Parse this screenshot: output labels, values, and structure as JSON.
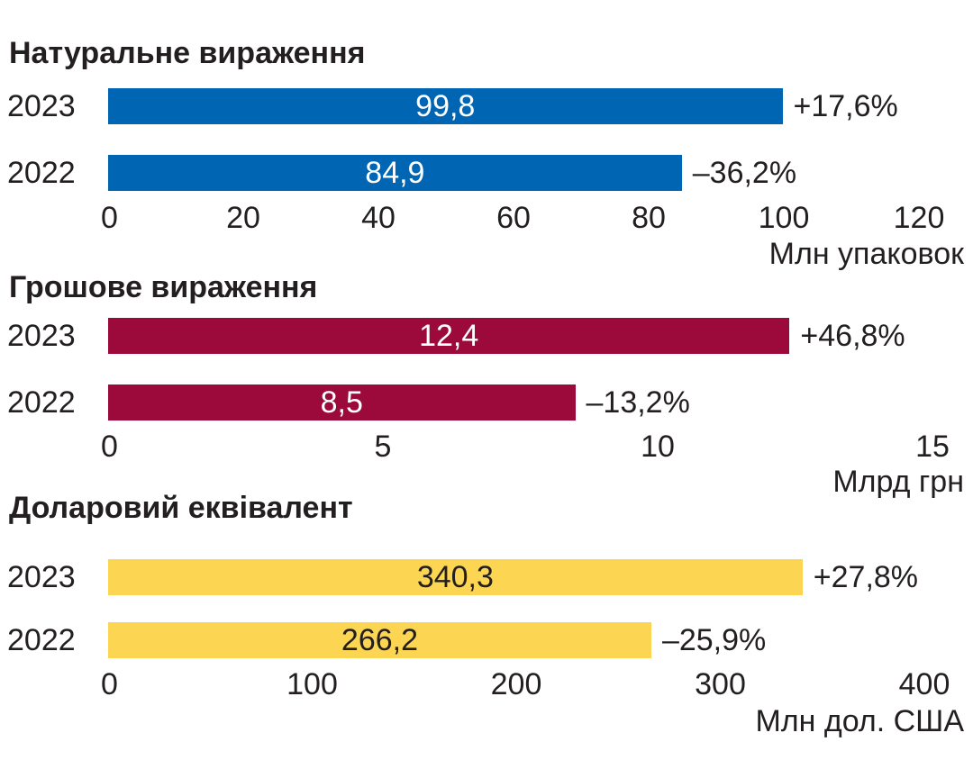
{
  "chart_data": [
    {
      "type": "bar",
      "title": "Натуральне вираження",
      "categories": [
        "2023",
        "2022"
      ],
      "values": [
        99.8,
        84.9
      ],
      "value_labels": [
        "99,8",
        "84,9"
      ],
      "change_labels": [
        "+17,6%",
        "–36,2%"
      ],
      "xlim": [
        0,
        120
      ],
      "ticks": [
        "0",
        "20",
        "40",
        "60",
        "80",
        "100",
        "120"
      ],
      "tick_values": [
        0,
        20,
        40,
        60,
        80,
        100,
        120
      ],
      "xlabel": "Млн упаковок",
      "color": "#0066b3",
      "label_color": "#ffffff"
    },
    {
      "type": "bar",
      "title": "Грошове вираження",
      "categories": [
        "2023",
        "2022"
      ],
      "values": [
        12.4,
        8.5
      ],
      "value_labels": [
        "12,4",
        "8,5"
      ],
      "change_labels": [
        "+46,8%",
        "–13,2%"
      ],
      "xlim": [
        0,
        15
      ],
      "ticks": [
        "0",
        "5",
        "10",
        "15"
      ],
      "tick_values": [
        0,
        5,
        10,
        15
      ],
      "xlabel": "Млрд грн",
      "color": "#9b0a3a",
      "label_color": "#ffffff"
    },
    {
      "type": "bar",
      "title": "Доларовий еквівалент",
      "categories": [
        "2023",
        "2022"
      ],
      "values": [
        340.3,
        266.2
      ],
      "value_labels": [
        "340,3",
        "266,2"
      ],
      "change_labels": [
        "+27,8%",
        "–25,9%"
      ],
      "xlim": [
        0,
        400
      ],
      "ticks": [
        "0",
        "100",
        "200",
        "300",
        "400"
      ],
      "tick_values": [
        0,
        100,
        200,
        300,
        400
      ],
      "xlabel": "Млн дол. США",
      "color": "#fcd553",
      "label_color": "#231f20"
    }
  ]
}
